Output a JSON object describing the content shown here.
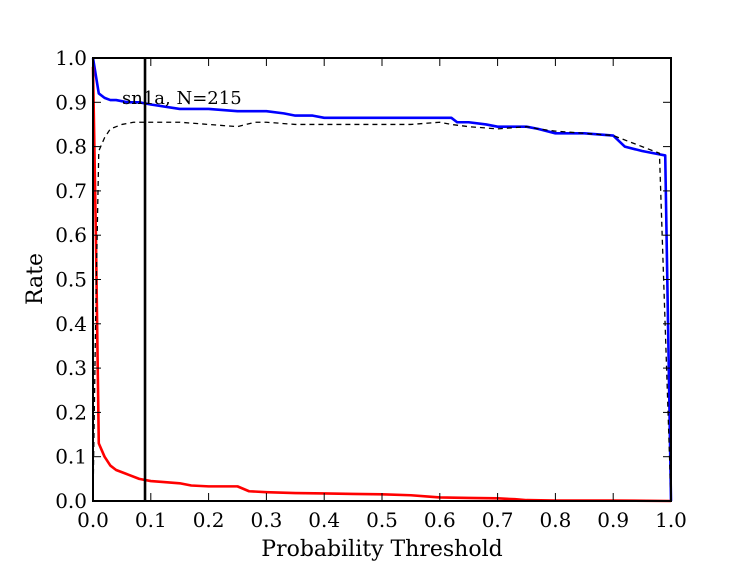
{
  "chart_data": {
    "type": "line",
    "title": "",
    "xlabel": "Probability Threshold",
    "ylabel": "Rate",
    "xlim": [
      0.0,
      1.0
    ],
    "ylim": [
      0.0,
      1.0
    ],
    "grid": false,
    "legend": "none",
    "xticks": [
      0.0,
      0.1,
      0.2,
      0.3,
      0.4,
      0.5,
      0.6,
      0.7,
      0.8,
      0.9,
      1.0
    ],
    "xtick_labels": [
      "0.0",
      "0.1",
      "0.2",
      "0.3",
      "0.4",
      "0.5",
      "0.6",
      "0.7",
      "0.8",
      "0.9",
      "1.0"
    ],
    "yticks": [
      0.0,
      0.1,
      0.2,
      0.3,
      0.4,
      0.5,
      0.6,
      0.7,
      0.8,
      0.9,
      1.0
    ],
    "ytick_labels": [
      "0.0",
      "0.1",
      "0.2",
      "0.3",
      "0.4",
      "0.5",
      "0.6",
      "0.7",
      "0.8",
      "0.9",
      "1.0"
    ],
    "annotation": "sn1a, N=215",
    "vertical_line": {
      "x": 0.09,
      "color": "#000000"
    },
    "series": [
      {
        "color": "#0000ff",
        "style": "solid",
        "x": [
          0.0,
          0.01,
          0.02,
          0.03,
          0.04,
          0.06,
          0.08,
          0.1,
          0.15,
          0.2,
          0.25,
          0.3,
          0.33,
          0.35,
          0.38,
          0.4,
          0.45,
          0.5,
          0.55,
          0.6,
          0.62,
          0.63,
          0.65,
          0.68,
          0.7,
          0.75,
          0.77,
          0.8,
          0.85,
          0.9,
          0.92,
          0.95,
          0.97,
          0.99,
          1.0
        ],
        "y": [
          1.0,
          0.92,
          0.91,
          0.905,
          0.905,
          0.9,
          0.9,
          0.895,
          0.885,
          0.885,
          0.88,
          0.88,
          0.875,
          0.87,
          0.87,
          0.865,
          0.865,
          0.865,
          0.865,
          0.865,
          0.865,
          0.855,
          0.855,
          0.85,
          0.845,
          0.845,
          0.84,
          0.83,
          0.83,
          0.825,
          0.8,
          0.79,
          0.785,
          0.78,
          0.0
        ]
      },
      {
        "color": "#ff0000",
        "style": "solid",
        "x": [
          0.0,
          0.005,
          0.01,
          0.015,
          0.02,
          0.03,
          0.04,
          0.06,
          0.08,
          0.1,
          0.12,
          0.15,
          0.17,
          0.2,
          0.25,
          0.27,
          0.3,
          0.35,
          0.4,
          0.45,
          0.5,
          0.55,
          0.58,
          0.6,
          0.65,
          0.7,
          0.73,
          0.75,
          0.8,
          0.9,
          1.0
        ],
        "y": [
          0.98,
          0.6,
          0.13,
          0.115,
          0.1,
          0.08,
          0.07,
          0.06,
          0.05,
          0.045,
          0.043,
          0.04,
          0.035,
          0.033,
          0.033,
          0.022,
          0.02,
          0.018,
          0.017,
          0.016,
          0.015,
          0.013,
          0.01,
          0.008,
          0.007,
          0.006,
          0.004,
          0.002,
          0.001,
          0.001,
          0.0
        ]
      },
      {
        "color": "#000000",
        "style": "dashed",
        "x": [
          0.0,
          0.005,
          0.01,
          0.02,
          0.03,
          0.05,
          0.07,
          0.1,
          0.15,
          0.2,
          0.25,
          0.28,
          0.3,
          0.35,
          0.4,
          0.5,
          0.55,
          0.6,
          0.62,
          0.65,
          0.7,
          0.75,
          0.77,
          0.8,
          0.85,
          0.9,
          0.95,
          0.98,
          1.0
        ],
        "y": [
          0.0,
          0.45,
          0.79,
          0.82,
          0.84,
          0.85,
          0.855,
          0.855,
          0.855,
          0.85,
          0.845,
          0.855,
          0.855,
          0.85,
          0.85,
          0.85,
          0.85,
          0.855,
          0.85,
          0.845,
          0.84,
          0.845,
          0.84,
          0.835,
          0.83,
          0.825,
          0.8,
          0.785,
          0.0
        ]
      }
    ]
  }
}
